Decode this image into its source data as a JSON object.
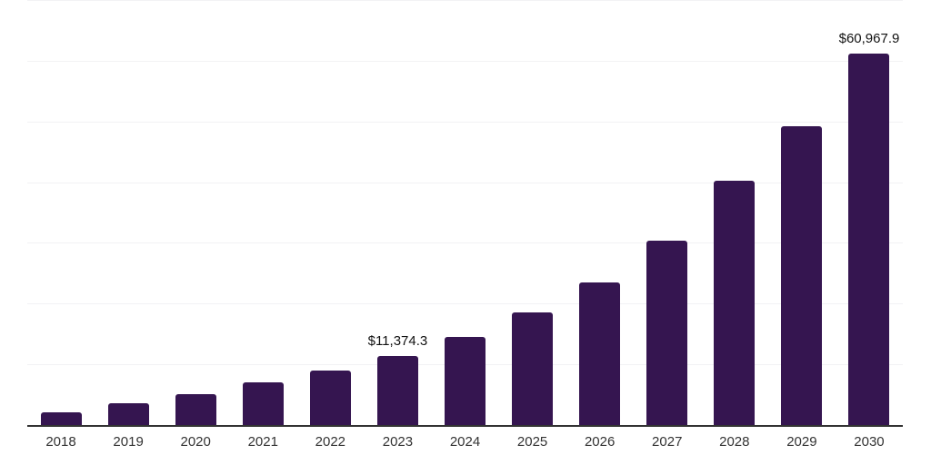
{
  "chart_data": {
    "type": "bar",
    "title": "",
    "categories": [
      "2018",
      "2019",
      "2020",
      "2021",
      "2022",
      "2023",
      "2024",
      "2025",
      "2026",
      "2027",
      "2028",
      "2029",
      "2030"
    ],
    "values": [
      2150,
      3650,
      5000,
      6950,
      8900,
      11374.3,
      14400,
      18400,
      23450,
      30300,
      40000,
      48950,
      60967.9
    ],
    "bar_labels": [
      "",
      "",
      "",
      "",
      "",
      "$11,374.3",
      "",
      "",
      "",
      "",
      "",
      "",
      "$60,967.9"
    ],
    "xlabel": "",
    "ylabel": "",
    "ylim": [
      0,
      70000
    ],
    "gridline_interval": 10000,
    "grid": true,
    "legend": false,
    "y_axis_tick_labels_visible": false,
    "colors": {
      "bar": "#351550",
      "axis_line": "#333333",
      "gridline": "#f2f2f4",
      "value_label": "#111111",
      "tick_label": "#333333",
      "background": "#ffffff"
    }
  }
}
